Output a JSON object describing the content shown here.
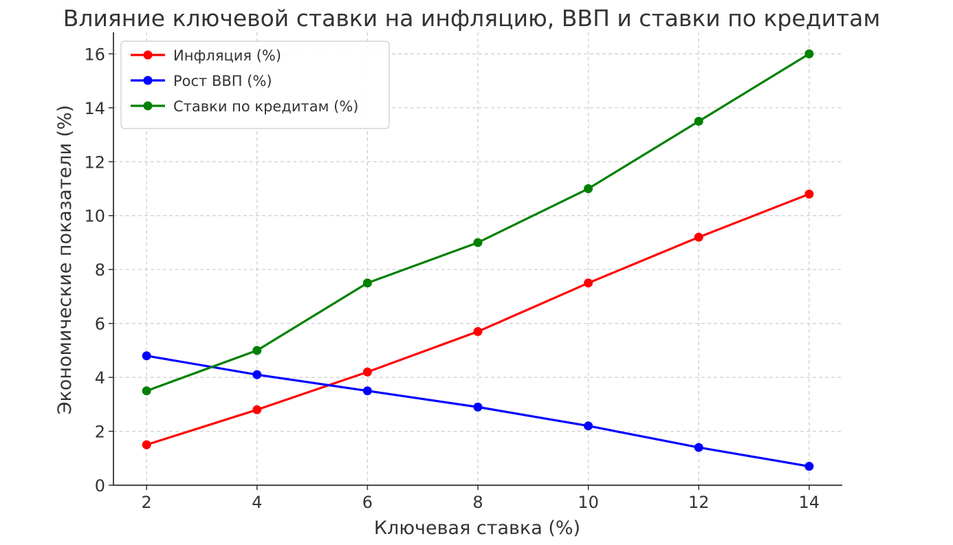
{
  "chart_data": {
    "type": "line",
    "title": "Влияние ключевой ставки на инфляцию, ВВП и ставки по кредитам",
    "xlabel": "Ключевая ставка (%)",
    "ylabel": "Экономические показатели (%)",
    "x": [
      2,
      4,
      6,
      8,
      10,
      12,
      14
    ],
    "xticks": [
      "2",
      "4",
      "6",
      "8",
      "10",
      "12",
      "14"
    ],
    "yticks": [
      "0",
      "2",
      "4",
      "6",
      "8",
      "10",
      "12",
      "14",
      "16"
    ],
    "xlim": [
      1.4,
      14.6
    ],
    "ylim": [
      0,
      16.8
    ],
    "grid": true,
    "legend_position": "top-left",
    "series": [
      {
        "name": "Инфляция (%)",
        "color": "#ff0000",
        "values": [
          1.5,
          2.8,
          4.2,
          5.7,
          7.5,
          9.2,
          10.8
        ]
      },
      {
        "name": "Рост ВВП (%)",
        "color": "#0000ff",
        "values": [
          4.8,
          4.1,
          3.5,
          2.9,
          2.2,
          1.4,
          0.7
        ]
      },
      {
        "name": "Ставки по кредитам (%)",
        "color": "#008000",
        "values": [
          3.5,
          5.0,
          7.5,
          9.0,
          11.0,
          13.5,
          16.0
        ]
      }
    ]
  }
}
